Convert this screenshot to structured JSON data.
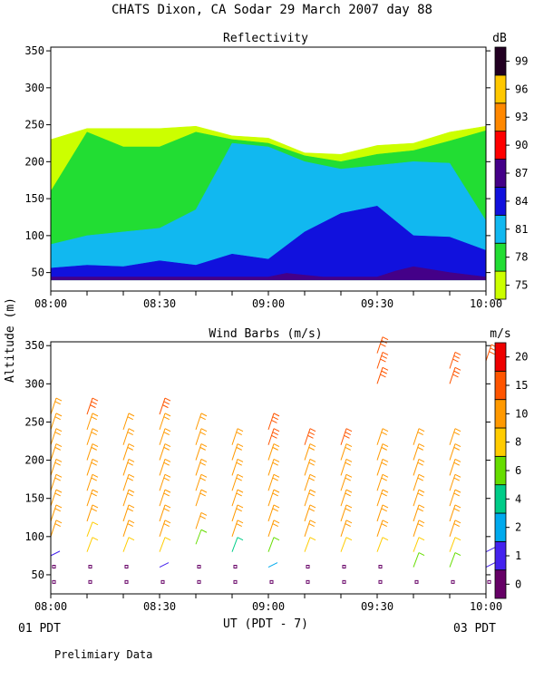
{
  "title": "CHATS Dixon, CA   Sodar   29 March 2007   day   88",
  "shared_ylabel": "Altitude  (m)",
  "xlabel": "UT  (PDT - 7)",
  "left_date": "01 PDT",
  "right_date": "03 PDT",
  "footer": "Prelimiary Data",
  "chart_data": [
    {
      "type": "area",
      "title": "Reflectivity",
      "colorbar_unit": "dB",
      "x_range": [
        "08:00",
        "10:00"
      ],
      "x_tick_labels": [
        "08:00",
        "08:30",
        "09:00",
        "09:30",
        "10:00"
      ],
      "y_range": [
        25,
        355
      ],
      "y_tick_labels": [
        "50",
        "100",
        "150",
        "200",
        "250",
        "300",
        "350"
      ],
      "levels": [
        "75",
        "78",
        "81",
        "84",
        "87",
        "90",
        "93",
        "96",
        "99"
      ],
      "level_colors": [
        "#ccff00",
        "#22dd33",
        "#11b8f0",
        "#1111dd",
        "#440088",
        "#ff0000",
        "#ff8800",
        "#ffc800",
        "#220022"
      ],
      "times_min": [
        0,
        10,
        20,
        30,
        40,
        50,
        60,
        70,
        80,
        90,
        100,
        110,
        120
      ],
      "top_contour_m": [
        230,
        245,
        245,
        245,
        248,
        235,
        232,
        212,
        210,
        222,
        225,
        240,
        248
      ],
      "filled_regions": [
        {
          "level": "75",
          "time_min": [
            0,
            0,
            10,
            20,
            30,
            40,
            50,
            60,
            70,
            80,
            90,
            100,
            110,
            120,
            120
          ],
          "altitude_m": [
            40,
            230,
            245,
            245,
            245,
            248,
            235,
            232,
            212,
            210,
            222,
            225,
            240,
            248,
            40
          ]
        },
        {
          "level": "78",
          "time_min": [
            0,
            0,
            10,
            20,
            30,
            40,
            50,
            60,
            70,
            80,
            90,
            100,
            110,
            120,
            120
          ],
          "altitude_m": [
            40,
            160,
            240,
            220,
            220,
            240,
            230,
            225,
            208,
            200,
            210,
            215,
            228,
            242,
            40
          ]
        },
        {
          "level": "81",
          "time_min": [
            0,
            0,
            10,
            20,
            30,
            40,
            50,
            60,
            70,
            80,
            90,
            100,
            110,
            120,
            120
          ],
          "altitude_m": [
            40,
            88,
            100,
            105,
            110,
            135,
            225,
            220,
            200,
            190,
            195,
            200,
            198,
            120,
            40
          ]
        },
        {
          "level": "84",
          "time_min": [
            0,
            0,
            10,
            20,
            30,
            40,
            50,
            60,
            70,
            80,
            90,
            100,
            110,
            120,
            120
          ],
          "altitude_m": [
            40,
            56,
            60,
            58,
            66,
            60,
            75,
            68,
            105,
            130,
            140,
            100,
            98,
            80,
            40
          ]
        },
        {
          "level": "87",
          "time_min": [
            0,
            0,
            60,
            65,
            75,
            90,
            95,
            100,
            110,
            120,
            120
          ],
          "altitude_m": [
            40,
            44,
            44,
            49,
            44,
            44,
            52,
            58,
            50,
            44,
            40
          ]
        }
      ]
    },
    {
      "type": "scatter",
      "title": "Wind Barbs (m/s)",
      "colorbar_unit": "m/s",
      "x_range": [
        "08:00",
        "10:00"
      ],
      "x_tick_labels": [
        "08:00",
        "08:30",
        "09:00",
        "09:30",
        "10:00"
      ],
      "y_range": [
        25,
        355
      ],
      "y_tick_labels": [
        "50",
        "100",
        "150",
        "200",
        "250",
        "300",
        "350"
      ],
      "speed_levels": [
        "0",
        "1",
        "2",
        "4",
        "6",
        "8",
        "10",
        "15",
        "20"
      ],
      "speed_colors": [
        "#660066",
        "#4422ee",
        "#00aaee",
        "#00cc88",
        "#66dd00",
        "#ffcc00",
        "#ff9900",
        "#ff5500",
        "#ee0000"
      ],
      "profile_times_min": [
        0,
        10,
        20,
        30,
        40,
        50,
        60,
        70,
        80,
        90,
        100,
        110,
        120
      ],
      "altitudes_m": [
        40,
        60,
        80,
        100,
        120,
        140,
        160,
        180,
        200,
        220,
        240,
        260,
        320,
        340
      ],
      "profiles": [
        {
          "time_min": 0,
          "altitude_m": [
            40,
            60,
            75,
            100,
            120,
            140,
            160,
            180,
            200,
            220,
            240,
            260
          ],
          "speed_ms": [
            0,
            0,
            1,
            10,
            10,
            10,
            10,
            10,
            10,
            12,
            12,
            12
          ]
        },
        {
          "time_min": 10,
          "altitude_m": [
            40,
            60,
            80,
            100,
            120,
            140,
            160,
            180,
            200,
            220,
            240,
            260
          ],
          "speed_ms": [
            0,
            0,
            8,
            8,
            10,
            10,
            10,
            10,
            10,
            12,
            12,
            15
          ]
        },
        {
          "time_min": 20,
          "altitude_m": [
            40,
            60,
            80,
            100,
            120,
            140,
            160,
            180,
            200,
            220,
            240
          ],
          "speed_ms": [
            0,
            0,
            8,
            10,
            10,
            10,
            10,
            10,
            12,
            12,
            12
          ]
        },
        {
          "time_min": 30,
          "altitude_m": [
            40,
            60,
            80,
            100,
            120,
            140,
            160,
            180,
            200,
            220,
            240,
            260
          ],
          "speed_ms": [
            0,
            1,
            8,
            10,
            10,
            10,
            10,
            10,
            10,
            12,
            12,
            15
          ]
        },
        {
          "time_min": 40,
          "altitude_m": [
            40,
            60,
            90,
            110,
            140,
            160,
            180,
            200,
            220,
            240
          ],
          "speed_ms": [
            0,
            0,
            6,
            10,
            10,
            10,
            10,
            10,
            12,
            12
          ]
        },
        {
          "time_min": 50,
          "altitude_m": [
            40,
            60,
            80,
            100,
            120,
            140,
            160,
            180,
            200,
            220
          ],
          "speed_ms": [
            0,
            0,
            4,
            10,
            10,
            10,
            10,
            10,
            10,
            12
          ]
        },
        {
          "time_min": 60,
          "altitude_m": [
            40,
            60,
            80,
            100,
            120,
            140,
            160,
            180,
            200,
            220,
            240
          ],
          "speed_ms": [
            0,
            2,
            6,
            10,
            10,
            10,
            10,
            10,
            10,
            15,
            15
          ]
        },
        {
          "time_min": 70,
          "altitude_m": [
            40,
            60,
            80,
            100,
            120,
            140,
            160,
            180,
            200,
            220
          ],
          "speed_ms": [
            0,
            0,
            8,
            10,
            10,
            10,
            10,
            10,
            10,
            15
          ]
        },
        {
          "time_min": 80,
          "altitude_m": [
            40,
            60,
            80,
            100,
            120,
            140,
            160,
            180,
            200,
            220
          ],
          "speed_ms": [
            0,
            0,
            8,
            10,
            10,
            10,
            10,
            10,
            10,
            15
          ]
        },
        {
          "time_min": 90,
          "altitude_m": [
            40,
            60,
            80,
            100,
            120,
            140,
            160,
            180,
            200,
            220,
            300,
            320,
            340
          ],
          "speed_ms": [
            0,
            0,
            8,
            10,
            10,
            10,
            10,
            10,
            10,
            10,
            15,
            15,
            15
          ]
        },
        {
          "time_min": 100,
          "altitude_m": [
            40,
            60,
            80,
            100,
            120,
            140,
            160,
            180,
            200,
            220
          ],
          "speed_ms": [
            0,
            6,
            8,
            10,
            10,
            10,
            10,
            10,
            10,
            10
          ]
        },
        {
          "time_min": 110,
          "altitude_m": [
            40,
            60,
            80,
            100,
            120,
            140,
            160,
            180,
            200,
            220,
            300,
            320
          ],
          "speed_ms": [
            0,
            6,
            8,
            10,
            10,
            10,
            10,
            10,
            10,
            12,
            15,
            15
          ]
        },
        {
          "time_min": 120,
          "altitude_m": [
            40,
            60,
            80,
            330
          ],
          "speed_ms": [
            0,
            1,
            1,
            15
          ]
        }
      ]
    }
  ]
}
